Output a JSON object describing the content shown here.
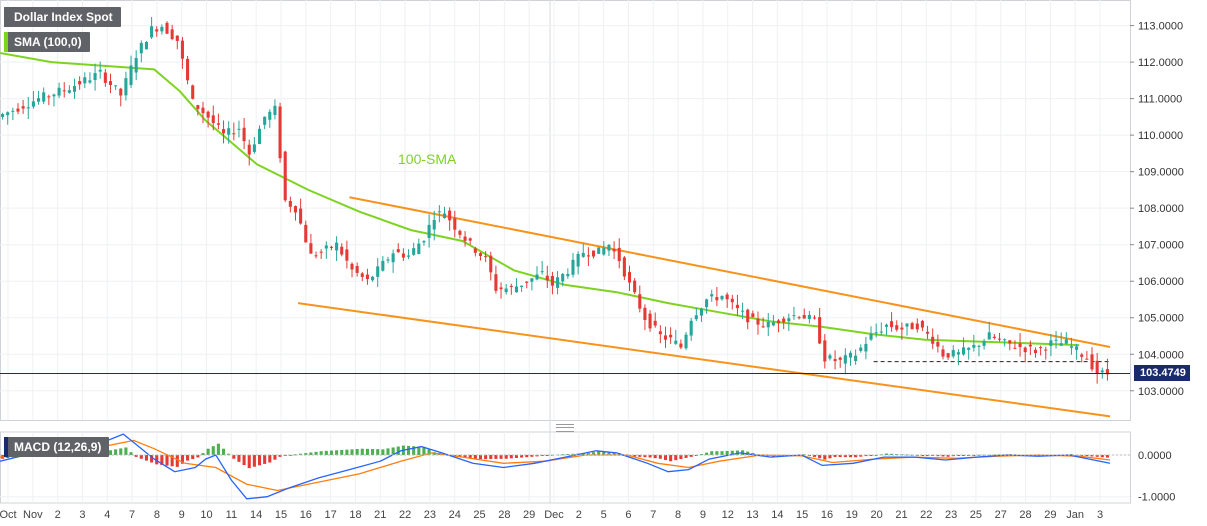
{
  "title": "Dollar Index Spot",
  "sma_badge": "SMA (100,0)",
  "macd_badge": "MACD (12,26,9)",
  "sma_annotation": "100-SMA",
  "last_price_label": "103.4749",
  "colors": {
    "up": "#26a69a",
    "down": "#e53935",
    "sma": "#7ed321",
    "channel": "#f7931a",
    "price_line": "#1a2b6d",
    "macd_line": "#2962ff",
    "signal_line": "#ff7f0e",
    "hist_pos": "#4caf50",
    "hist_neg": "#e53935",
    "sma_badge_accent": "#7ed321",
    "title_badge_accent": "#5f6368",
    "macd_badge_accent": "#1a2b6d"
  },
  "chart_data": [
    {
      "type": "candlestick",
      "title": "Dollar Index Spot",
      "x_tick_labels": [
        "Oct",
        "Nov",
        "2",
        "3",
        "4",
        "7",
        "8",
        "9",
        "10",
        "11",
        "14",
        "15",
        "16",
        "17",
        "18",
        "21",
        "22",
        "23",
        "24",
        "25",
        "28",
        "29",
        "Dec",
        "2",
        "5",
        "6",
        "7",
        "8",
        "9",
        "12",
        "13",
        "14",
        "15",
        "16",
        "19",
        "20",
        "21",
        "22",
        "23",
        "25",
        "27",
        "28",
        "29",
        "Jan",
        "3"
      ],
      "y_ticks": [
        103,
        104,
        105,
        106,
        107,
        108,
        109,
        110,
        111,
        112,
        113
      ],
      "y_tick_labels": [
        "103.0000",
        "104.0000",
        "105.0000",
        "106.0000",
        "107.0000",
        "108.0000",
        "109.0000",
        "110.0000",
        "111.0000",
        "112.0000",
        "113.0000"
      ],
      "ylim": [
        102.2,
        113.7
      ],
      "last_price": 103.4749,
      "path_points": [
        [
          0,
          110.5
        ],
        [
          8,
          111.0
        ],
        [
          14,
          111.3
        ],
        [
          20,
          111.7
        ],
        [
          24,
          111.1
        ],
        [
          27,
          112.2
        ],
        [
          30,
          112.9
        ],
        [
          32,
          113.0
        ],
        [
          35,
          112.6
        ],
        [
          38,
          110.9
        ],
        [
          41,
          110.5
        ],
        [
          44,
          110.0
        ],
        [
          47,
          110.2
        ],
        [
          49,
          109.5
        ],
        [
          52,
          110.5
        ],
        [
          54,
          110.7
        ],
        [
          56,
          108.2
        ],
        [
          58,
          108.0
        ],
        [
          61,
          106.7
        ],
        [
          63,
          106.8
        ],
        [
          66,
          107.0
        ],
        [
          69,
          106.3
        ],
        [
          72,
          106.0
        ],
        [
          74,
          106.3
        ],
        [
          77,
          106.8
        ],
        [
          80,
          106.7
        ],
        [
          83,
          107.2
        ],
        [
          85,
          107.8
        ],
        [
          87,
          107.9
        ],
        [
          89,
          107.5
        ],
        [
          92,
          107.0
        ],
        [
          95,
          106.6
        ],
        [
          97,
          105.8
        ],
        [
          100,
          105.8
        ],
        [
          103,
          106.0
        ],
        [
          106,
          106.2
        ],
        [
          108,
          105.9
        ],
        [
          111,
          106.3
        ],
        [
          114,
          106.8
        ],
        [
          117,
          106.8
        ],
        [
          119,
          107.0
        ],
        [
          121,
          106.6
        ],
        [
          123,
          105.9
        ],
        [
          126,
          105.0
        ],
        [
          129,
          104.5
        ],
        [
          131,
          104.4
        ],
        [
          133,
          104.2
        ],
        [
          135,
          105.0
        ],
        [
          138,
          105.5
        ],
        [
          141,
          105.6
        ],
        [
          144,
          105.2
        ],
        [
          147,
          104.9
        ],
        [
          150,
          104.8
        ],
        [
          153,
          105.0
        ],
        [
          156,
          105.1
        ],
        [
          159,
          104.9
        ],
        [
          161,
          103.9
        ],
        [
          164,
          103.8
        ],
        [
          167,
          104.0
        ],
        [
          170,
          104.5
        ],
        [
          173,
          104.8
        ],
        [
          176,
          104.7
        ],
        [
          179,
          104.8
        ],
        [
          182,
          104.4
        ],
        [
          184,
          104.0
        ],
        [
          187,
          104.0
        ],
        [
          190,
          104.2
        ],
        [
          193,
          104.5
        ],
        [
          196,
          104.3
        ],
        [
          199,
          104.2
        ],
        [
          202,
          104.1
        ],
        [
          205,
          104.3
        ],
        [
          208,
          104.3
        ],
        [
          210,
          104.1
        ],
        [
          212,
          103.9
        ],
        [
          214,
          103.5
        ],
        [
          215,
          103.47
        ]
      ],
      "path_x_domain": [
        0,
        216
      ],
      "sma_100": [
        [
          0,
          112.25
        ],
        [
          10,
          112.0
        ],
        [
          20,
          111.9
        ],
        [
          30,
          111.8
        ],
        [
          35,
          111.2
        ],
        [
          40,
          110.4
        ],
        [
          45,
          109.8
        ],
        [
          50,
          109.2
        ],
        [
          60,
          108.5
        ],
        [
          70,
          107.9
        ],
        [
          80,
          107.4
        ],
        [
          90,
          107.1
        ],
        [
          100,
          106.3
        ],
        [
          110,
          105.9
        ],
        [
          120,
          105.7
        ],
        [
          130,
          105.4
        ],
        [
          140,
          105.15
        ],
        [
          150,
          104.9
        ],
        [
          160,
          104.75
        ],
        [
          170,
          104.55
        ],
        [
          180,
          104.4
        ],
        [
          190,
          104.35
        ],
        [
          200,
          104.3
        ],
        [
          210,
          104.25
        ]
      ],
      "channel_upper": [
        [
          68,
          108.3
        ],
        [
          216,
          104.2
        ]
      ],
      "channel_lower": [
        [
          58,
          105.4
        ],
        [
          216,
          102.3
        ]
      ],
      "support_level": 103.8,
      "support_x_range": [
        170,
        216
      ]
    },
    {
      "type": "line",
      "title": "MACD (12,26,9)",
      "y_ticks": [
        0,
        -1
      ],
      "y_tick_labels": [
        "0.0000",
        "-1.0000"
      ],
      "ylim": [
        -1.15,
        0.55
      ],
      "macd_line": [
        [
          0,
          -0.15
        ],
        [
          10,
          0.15
        ],
        [
          20,
          0.3
        ],
        [
          24,
          0.5
        ],
        [
          26,
          0.3
        ],
        [
          30,
          -0.1
        ],
        [
          34,
          -0.4
        ],
        [
          38,
          -0.3
        ],
        [
          40,
          -0.1
        ],
        [
          42,
          0.0
        ],
        [
          45,
          -0.6
        ],
        [
          48,
          -1.05
        ],
        [
          52,
          -1.0
        ],
        [
          56,
          -0.8
        ],
        [
          62,
          -0.55
        ],
        [
          68,
          -0.35
        ],
        [
          74,
          -0.15
        ],
        [
          78,
          0.1
        ],
        [
          82,
          0.2
        ],
        [
          86,
          0.05
        ],
        [
          92,
          -0.2
        ],
        [
          98,
          -0.3
        ],
        [
          104,
          -0.2
        ],
        [
          110,
          -0.05
        ],
        [
          116,
          0.1
        ],
        [
          120,
          0.05
        ],
        [
          126,
          -0.2
        ],
        [
          130,
          -0.4
        ],
        [
          134,
          -0.35
        ],
        [
          138,
          -0.1
        ],
        [
          144,
          0.05
        ],
        [
          150,
          -0.05
        ],
        [
          156,
          0.0
        ],
        [
          160,
          -0.25
        ],
        [
          166,
          -0.2
        ],
        [
          172,
          -0.05
        ],
        [
          178,
          -0.05
        ],
        [
          184,
          -0.12
        ],
        [
          190,
          -0.05
        ],
        [
          196,
          0.0
        ],
        [
          202,
          -0.03
        ],
        [
          208,
          0.0
        ],
        [
          212,
          -0.1
        ],
        [
          216,
          -0.2
        ]
      ],
      "signal_line": [
        [
          0,
          -0.05
        ],
        [
          10,
          0.05
        ],
        [
          20,
          0.2
        ],
        [
          26,
          0.35
        ],
        [
          30,
          0.15
        ],
        [
          36,
          -0.2
        ],
        [
          42,
          -0.3
        ],
        [
          48,
          -0.7
        ],
        [
          54,
          -0.85
        ],
        [
          62,
          -0.65
        ],
        [
          70,
          -0.45
        ],
        [
          78,
          -0.15
        ],
        [
          84,
          0.05
        ],
        [
          90,
          -0.05
        ],
        [
          98,
          -0.2
        ],
        [
          106,
          -0.15
        ],
        [
          114,
          0.0
        ],
        [
          122,
          0.0
        ],
        [
          128,
          -0.2
        ],
        [
          134,
          -0.3
        ],
        [
          140,
          -0.15
        ],
        [
          148,
          0.0
        ],
        [
          156,
          -0.02
        ],
        [
          162,
          -0.18
        ],
        [
          170,
          -0.1
        ],
        [
          178,
          -0.05
        ],
        [
          186,
          -0.08
        ],
        [
          194,
          -0.03
        ],
        [
          202,
          0.0
        ],
        [
          210,
          -0.03
        ],
        [
          216,
          -0.12
        ]
      ]
    }
  ]
}
